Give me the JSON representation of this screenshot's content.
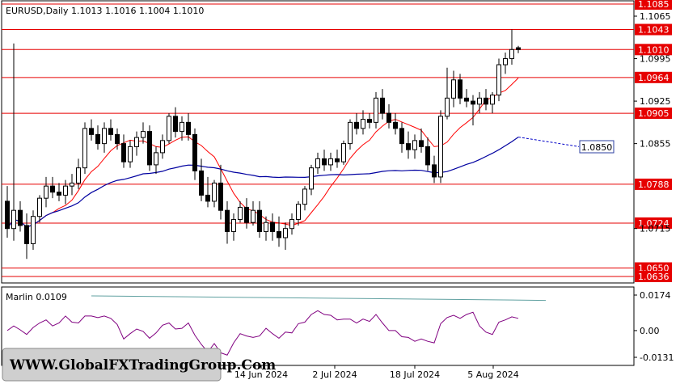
{
  "chart_data": [
    {
      "type": "candlestick",
      "symbol": "EURUSD",
      "timeframe": "Daily",
      "ohlc_label": "1.1013 1.1016 1.1004 1.1010",
      "title": "EURUSD,Daily  1.1013 1.1016 1.1004 1.1010",
      "ylim": [
        1.0636,
        1.1085
      ],
      "y_ticks": [
        "1.1065",
        "1.0995",
        "1.0925",
        "1.0855",
        "1.0715"
      ],
      "x_ticks": [
        "14 Jun 2024",
        "2 Jul 2024",
        "18 Jul 2024",
        "5 Aug 2024"
      ],
      "levels": [
        "1.1085",
        "1.1043",
        "1.1010",
        "1.0964",
        "1.0905",
        "1.0788",
        "1.0724",
        "1.0650",
        "1.0636"
      ],
      "level_color": "#e60000",
      "target_label": "1.0850",
      "target_color": "#0000c8",
      "series": [
        {
          "color": "#ff0000"
        },
        {
          "color": "#0000a0"
        }
      ],
      "candles": [
        [
          1.076,
          1.0785,
          1.07,
          1.0715
        ],
        [
          1.0715,
          1.102,
          1.0695,
          1.0745
        ],
        [
          1.0745,
          1.076,
          1.071,
          1.072
        ],
        [
          1.072,
          1.074,
          1.0665,
          1.069
        ],
        [
          1.069,
          1.0745,
          1.068,
          1.0735
        ],
        [
          1.0735,
          1.077,
          1.0725,
          1.0765
        ],
        [
          1.0765,
          1.08,
          1.075,
          1.0785
        ],
        [
          1.0785,
          1.08,
          1.0765,
          1.0775
        ],
        [
          1.0775,
          1.079,
          1.076,
          1.077
        ],
        [
          1.077,
          1.0795,
          1.0755,
          1.0785
        ],
        [
          1.0785,
          1.0805,
          1.077,
          1.079
        ],
        [
          1.079,
          1.083,
          1.078,
          1.0815
        ],
        [
          1.0815,
          1.089,
          1.0805,
          1.088
        ],
        [
          1.088,
          1.0895,
          1.086,
          1.087
        ],
        [
          1.087,
          1.0885,
          1.0845,
          1.0855
        ],
        [
          1.0855,
          1.089,
          1.084,
          1.088
        ],
        [
          1.088,
          1.0895,
          1.086,
          1.087
        ],
        [
          1.087,
          1.088,
          1.0845,
          1.0855
        ],
        [
          1.0855,
          1.087,
          1.0815,
          1.0825
        ],
        [
          1.0825,
          1.086,
          1.0815,
          1.085
        ],
        [
          1.085,
          1.0875,
          1.0835,
          1.0865
        ],
        [
          1.0865,
          1.089,
          1.0855,
          1.0875
        ],
        [
          1.0875,
          1.0885,
          1.081,
          1.082
        ],
        [
          1.082,
          1.085,
          1.0805,
          1.084
        ],
        [
          1.084,
          1.087,
          1.083,
          1.086
        ],
        [
          1.086,
          1.0905,
          1.0855,
          1.09
        ],
        [
          1.09,
          1.0915,
          1.0865,
          1.0875
        ],
        [
          1.0875,
          1.09,
          1.086,
          1.089
        ],
        [
          1.089,
          1.0905,
          1.086,
          1.087
        ],
        [
          1.087,
          1.088,
          1.0795,
          1.081
        ],
        [
          1.081,
          1.083,
          1.076,
          1.077
        ],
        [
          1.077,
          1.08,
          1.075,
          1.076
        ],
        [
          1.076,
          1.0795,
          1.075,
          1.079
        ],
        [
          1.079,
          1.082,
          1.073,
          1.0745
        ],
        [
          1.0745,
          1.076,
          1.069,
          1.071
        ],
        [
          1.071,
          1.074,
          1.0695,
          1.073
        ],
        [
          1.073,
          1.076,
          1.0725,
          1.075
        ],
        [
          1.075,
          1.0765,
          1.0715,
          1.0725
        ],
        [
          1.0725,
          1.076,
          1.072,
          1.0745
        ],
        [
          1.0745,
          1.076,
          1.07,
          1.071
        ],
        [
          1.071,
          1.0735,
          1.0695,
          1.0725
        ],
        [
          1.0725,
          1.074,
          1.0695,
          1.071
        ],
        [
          1.071,
          1.0735,
          1.0685,
          1.07
        ],
        [
          1.07,
          1.0725,
          1.068,
          1.0715
        ],
        [
          1.0715,
          1.074,
          1.0705,
          1.073
        ],
        [
          1.073,
          1.076,
          1.072,
          1.0755
        ],
        [
          1.0755,
          1.0785,
          1.0745,
          1.078
        ],
        [
          1.078,
          1.082,
          1.077,
          1.0815
        ],
        [
          1.0815,
          1.084,
          1.0805,
          1.083
        ],
        [
          1.083,
          1.0845,
          1.081,
          1.082
        ],
        [
          1.082,
          1.084,
          1.081,
          1.083
        ],
        [
          1.083,
          1.0845,
          1.0815,
          1.0825
        ],
        [
          1.0825,
          1.086,
          1.082,
          1.0855
        ],
        [
          1.0855,
          1.0895,
          1.0845,
          1.089
        ],
        [
          1.089,
          1.0905,
          1.087,
          1.088
        ],
        [
          1.088,
          1.091,
          1.087,
          1.0895
        ],
        [
          1.0895,
          1.0905,
          1.088,
          1.089
        ],
        [
          1.089,
          1.094,
          1.088,
          1.093
        ],
        [
          1.093,
          1.0945,
          1.0895,
          1.0905
        ],
        [
          1.0905,
          1.092,
          1.088,
          1.089
        ],
        [
          1.089,
          1.0905,
          1.087,
          1.088
        ],
        [
          1.088,
          1.089,
          1.084,
          1.0855
        ],
        [
          1.0855,
          1.0875,
          1.083,
          1.0845
        ],
        [
          1.0845,
          1.087,
          1.083,
          1.086
        ],
        [
          1.086,
          1.088,
          1.084,
          1.085
        ],
        [
          1.085,
          1.0865,
          1.081,
          1.082
        ],
        [
          1.082,
          1.0835,
          1.079,
          1.08
        ],
        [
          1.08,
          1.091,
          1.079,
          1.09
        ],
        [
          1.09,
          1.098,
          1.0895,
          1.093
        ],
        [
          1.093,
          1.0975,
          1.0915,
          1.096
        ],
        [
          1.096,
          1.097,
          1.092,
          1.093
        ],
        [
          1.093,
          1.0945,
          1.0915,
          1.0925
        ],
        [
          1.0925,
          1.0935,
          1.0885,
          1.092
        ],
        [
          1.092,
          1.094,
          1.0905,
          1.093
        ],
        [
          1.093,
          1.0945,
          1.091,
          1.092
        ],
        [
          1.092,
          1.094,
          1.0905,
          1.0935
        ],
        [
          1.0935,
          1.0995,
          1.0925,
          1.0985
        ],
        [
          1.0985,
          1.1005,
          1.097,
          1.0995
        ],
        [
          1.0995,
          1.1043,
          1.0985,
          1.101
        ],
        [
          1.1013,
          1.1016,
          1.1004,
          1.101
        ]
      ]
    },
    {
      "type": "line",
      "title": "Marlin 0.0109",
      "ylim": [
        -0.0131,
        0.0174
      ],
      "y_ticks": [
        "0.0174",
        "0.00",
        "-0.0131"
      ]
    }
  ],
  "watermark": "WWW.GlobalFXTradingGroup.Com"
}
